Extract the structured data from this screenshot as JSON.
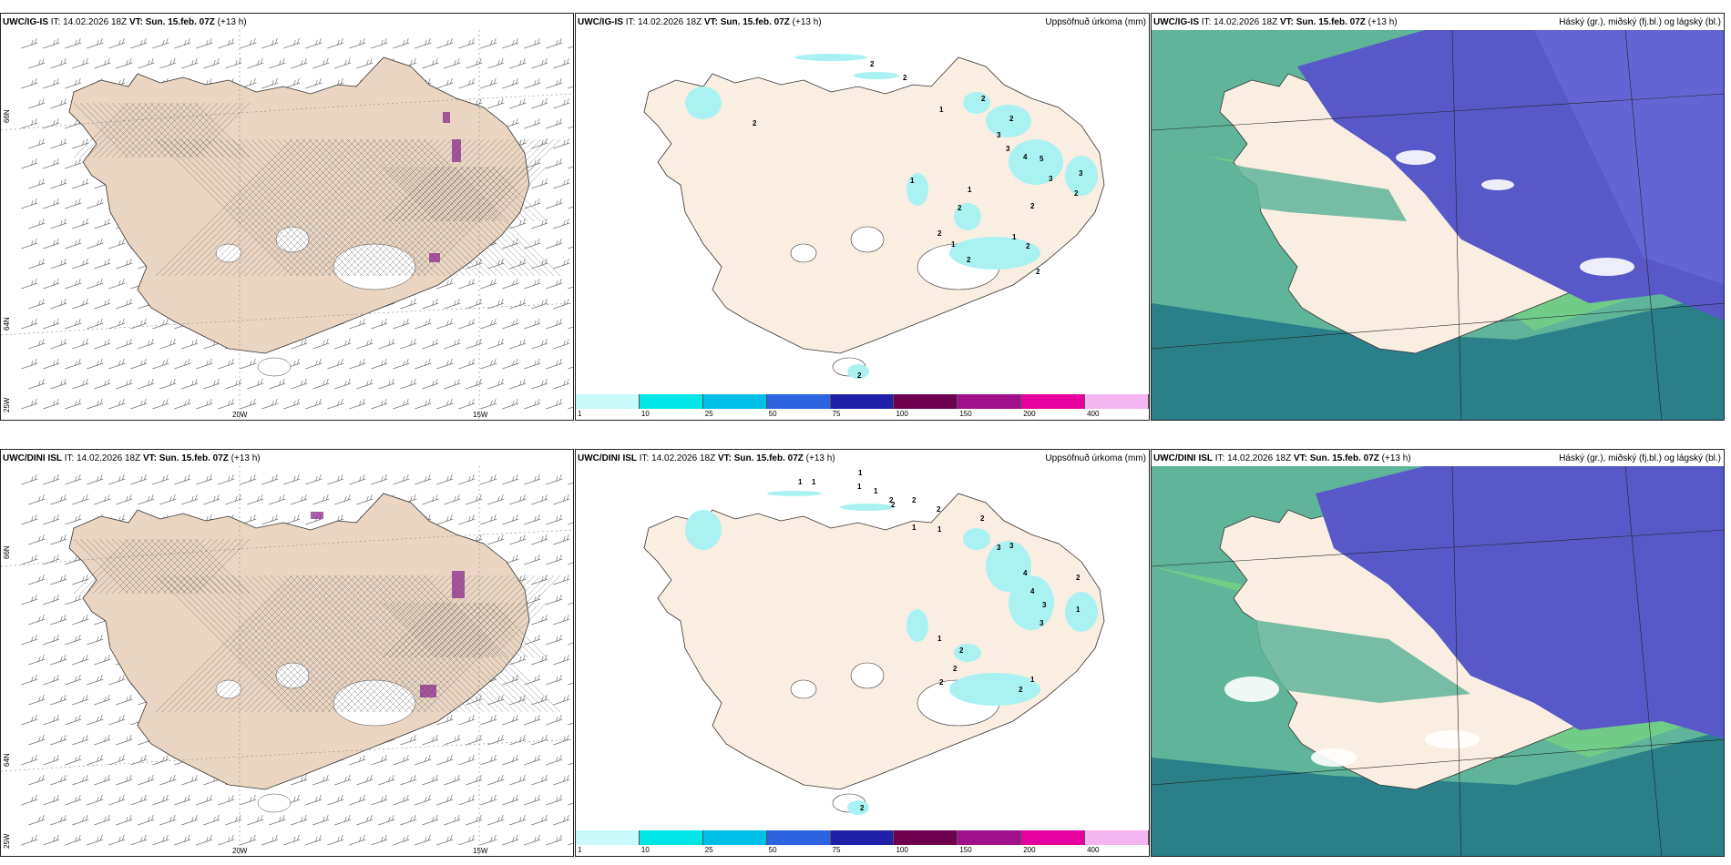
{
  "rows": [
    {
      "model": "UWC/IG-IS",
      "it_label": "IT:",
      "it_value": "14.02.2026 18Z",
      "vt_label": "VT:",
      "vt_value": "Sun. 15.feb. 07Z",
      "lead": "(+13 h)"
    },
    {
      "model": "UWC/DINI ISL",
      "it_label": "IT:",
      "it_value": "14.02.2026 18Z",
      "vt_label": "VT:",
      "vt_value": "Sun. 15.feb. 07Z",
      "lead": "(+13 h)"
    }
  ],
  "precip_title": "Uppsöfnuð úrkoma (mm)",
  "cloud_title": "Háský (gr.), miðský (fj.bl.) og lágský (bl.)",
  "graticule": {
    "lat1": "66N",
    "lat2": "64N",
    "lon1": "25W",
    "lon2": "20W",
    "lon3": "15W"
  },
  "colorbar": {
    "ticks": [
      "1",
      "10",
      "25",
      "50",
      "75",
      "100",
      "150",
      "200",
      "400"
    ],
    "colors": [
      "#c8fafa",
      "#00e6e6",
      "#00bfe6",
      "#2b63e0",
      "#2020a8",
      "#6e0050",
      "#a0108a",
      "#e600a0",
      "#f4b4f0"
    ]
  },
  "colors": {
    "land": "#faeee2",
    "wind_land": "#e9d5c2",
    "precip_light": "#aaf2f2",
    "cloud_high": "#5858c8",
    "cloud_mid": "#5fb49a",
    "cloud_low": "#2a7f88",
    "cloud_green": "#7fe07a"
  },
  "precip_numbers_top": [
    "2",
    "2",
    "2",
    "1",
    "2",
    "2",
    "3",
    "3",
    "4",
    "5",
    "3",
    "3",
    "2",
    "1",
    "1",
    "2",
    "2",
    "1",
    "2",
    "1",
    "2",
    "2",
    "2",
    "2"
  ],
  "precip_numbers_bottom": [
    "1",
    "1",
    "1",
    "1",
    "1",
    "2",
    "2",
    "2",
    "2",
    "1",
    "1",
    "2",
    "3",
    "3",
    "4",
    "4",
    "3",
    "3",
    "2",
    "1",
    "2",
    "1",
    "2",
    "2",
    "1",
    "2",
    "2"
  ]
}
